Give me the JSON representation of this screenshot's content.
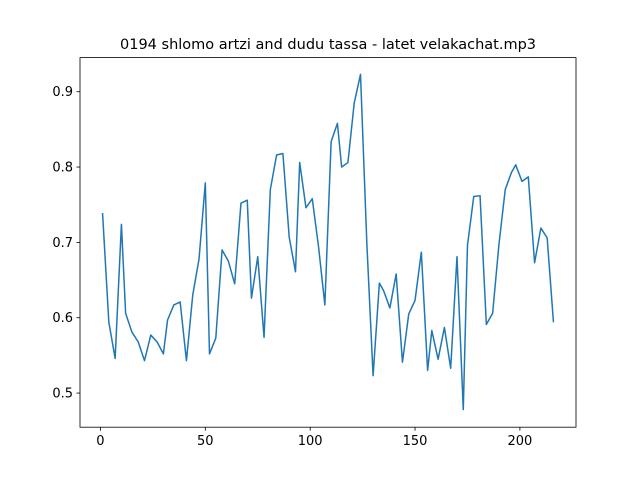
{
  "chart_data": {
    "type": "line",
    "title": "0194 shlomo artzi and dudu tassa - latet velakachat.mp3",
    "x": [
      1,
      4,
      7,
      10,
      12,
      15,
      18,
      21,
      24,
      27,
      30,
      32,
      35,
      38,
      41,
      44,
      47,
      50,
      52,
      55,
      58,
      61,
      64,
      67,
      70,
      72,
      75,
      78,
      81,
      84,
      87,
      90,
      93,
      95,
      98,
      101,
      104,
      107,
      110,
      113,
      115,
      118,
      121,
      124,
      127,
      130,
      133,
      135,
      138,
      141,
      144,
      147,
      150,
      153,
      156,
      158,
      161,
      164,
      167,
      170,
      173,
      175,
      178,
      181,
      184,
      187,
      190,
      193,
      196,
      198,
      201,
      204,
      207,
      210,
      213,
      216
    ],
    "series": [
      {
        "color": "#1f77b4",
        "values": [
          0.739,
          0.594,
          0.546,
          0.724,
          0.606,
          0.581,
          0.568,
          0.543,
          0.577,
          0.568,
          0.552,
          0.597,
          0.617,
          0.621,
          0.543,
          0.63,
          0.678,
          0.779,
          0.552,
          0.573,
          0.69,
          0.675,
          0.645,
          0.752,
          0.756,
          0.626,
          0.681,
          0.574,
          0.77,
          0.816,
          0.818,
          0.707,
          0.661,
          0.806,
          0.746,
          0.758,
          0.694,
          0.617,
          0.834,
          0.858,
          0.8,
          0.806,
          0.885,
          0.923,
          0.7,
          0.523,
          0.646,
          0.636,
          0.613,
          0.658,
          0.541,
          0.605,
          0.623,
          0.687,
          0.53,
          0.583,
          0.545,
          0.587,
          0.533,
          0.681,
          0.478,
          0.696,
          0.761,
          0.762,
          0.591,
          0.606,
          0.697,
          0.77,
          0.793,
          0.803,
          0.781,
          0.787,
          0.673,
          0.719,
          0.706,
          0.594
        ]
      }
    ],
    "xlim": [
      -9.75,
      226.75
    ],
    "xticks": [
      0,
      50,
      100,
      150,
      200
    ],
    "ylim": [
      0.4547,
      0.9453
    ],
    "yticks": [
      0.5,
      0.6,
      0.7,
      0.8,
      0.9
    ]
  }
}
